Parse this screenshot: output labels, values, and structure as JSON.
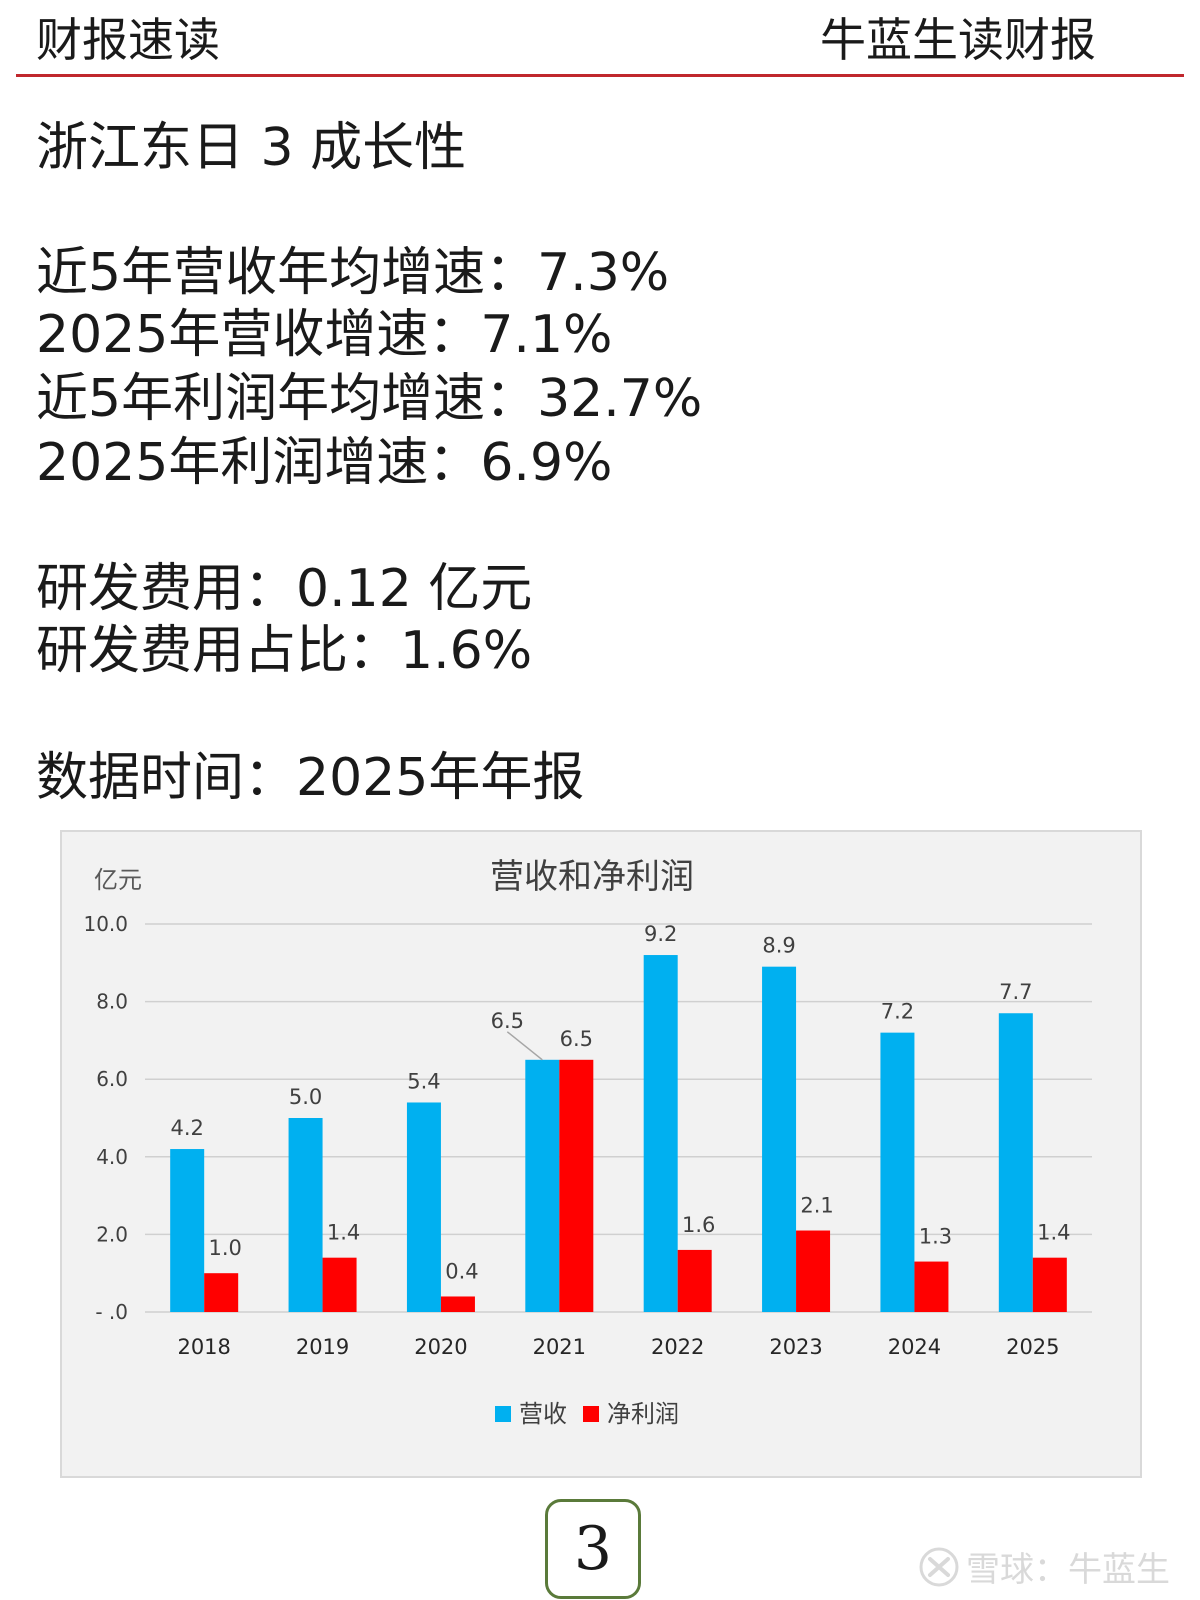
{
  "header": {
    "left": "财报速读",
    "right": "牛蓝生读财报"
  },
  "body": {
    "title": "浙江东日 3 成长性",
    "lines": [
      "近5年营收年均增速：7.3%",
      "2025年营收增速：7.1%",
      "近5年利润年均增速：32.7%",
      "2025年利润增速：6.9%",
      "研发费用：0.12 亿元",
      "研发费用占比：1.6%",
      "数据时间：2025年年报"
    ]
  },
  "chart_data": {
    "type": "bar",
    "title": "营收和净利润",
    "ylabel": "亿元",
    "categories": [
      "2018",
      "2019",
      "2020",
      "2021",
      "2022",
      "2023",
      "2024",
      "2025"
    ],
    "series": [
      {
        "name": "营收",
        "color": "#00b0f0",
        "values": [
          4.2,
          5.0,
          5.4,
          6.5,
          9.2,
          8.9,
          7.2,
          7.7
        ]
      },
      {
        "name": "净利润",
        "color": "#ff0000",
        "values": [
          1.0,
          1.4,
          0.4,
          6.5,
          1.6,
          2.1,
          1.3,
          1.4
        ]
      }
    ],
    "yticks": [
      "- .0",
      "2.0",
      "4.0",
      "6.0",
      "8.0",
      "10.0"
    ],
    "ylim": [
      0,
      10
    ],
    "grid": true,
    "legend": "bottom"
  },
  "page_number": "3",
  "watermark": {
    "text": "雪球：牛蓝生",
    "icon": "xueqiu-logo-icon"
  }
}
